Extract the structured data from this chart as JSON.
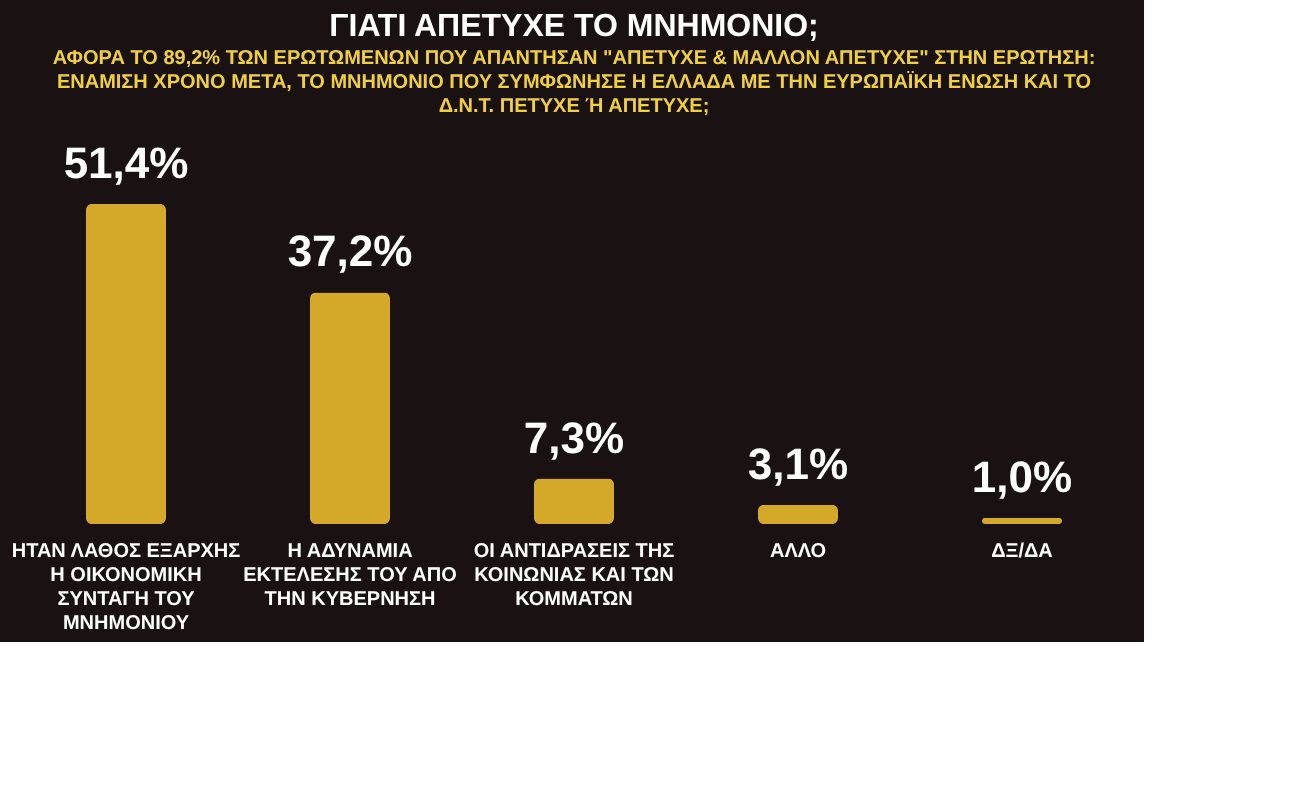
{
  "chart_data": {
    "type": "bar",
    "title": "ΓΙΑΤΙ ΑΠΕΤΥΧΕ ΤΟ ΜΝΗΜΟΝΙΟ;",
    "subtitle": "ΑΦΟΡΑ ΤΟ 89,2% ΤΩΝ ΕΡΩΤΩΜΕΝΩΝ ΠΟΥ ΑΠΑΝΤΗΣΑΝ \"ΑΠΕΤΥΧΕ & ΜΑΛΛΟΝ ΑΠΕΤΥΧΕ\" ΣΤΗΝ ΕΡΩΤΗΣΗ:",
    "annotations": [
      "ΕΝΑΜΙΣΗ ΧΡΟΝΟ ΜΕΤΑ, ΤΟ ΜΝΗΜΟΝΙΟ ΠΟΥ ΣΥΜΦΩΝΗΣΕ Η ΕΛΛΑΔΑ ΜΕ ΤΗΝ ΕΥΡΩΠΑΪΚΗ ΕΝΩΣΗ ΚΑΙ ΤΟ Δ.Ν.Τ. ΠΕΤΥΧΕ Ή ΑΠΕΤΥΧΕ;"
    ],
    "categories": [
      "ΗΤΑΝ ΛΑΘΟΣ ΕΞΑΡΧΗΣ Η ΟΙΚΟΝΟΜΙΚΗ ΣΥΝΤΑΓΗ ΤΟΥ ΜΝΗΜΟΝΙΟΥ",
      "Η ΑΔΥΝΑΜΙΑ ΕΚΤΕΛΕΣΗΣ ΤΟΥ ΑΠΟ ΤΗΝ ΚΥΒΕΡΝΗΣΗ",
      "ΟΙ ΑΝΤΙΔΡΑΣΕΙΣ ΤΗΣ ΚΟΙΝΩΝΙΑΣ ΚΑΙ ΤΩΝ ΚΟΜΜΑΤΩΝ",
      "ΑΛΛΟ",
      "ΔΞ/ΔΑ"
    ],
    "values": [
      51.4,
      37.2,
      7.3,
      3.1,
      1.0
    ],
    "value_labels": [
      "51,4%",
      "37,2%",
      "7,3%",
      "3,1%",
      "1,0%"
    ],
    "color": "#d4a92a"
  }
}
